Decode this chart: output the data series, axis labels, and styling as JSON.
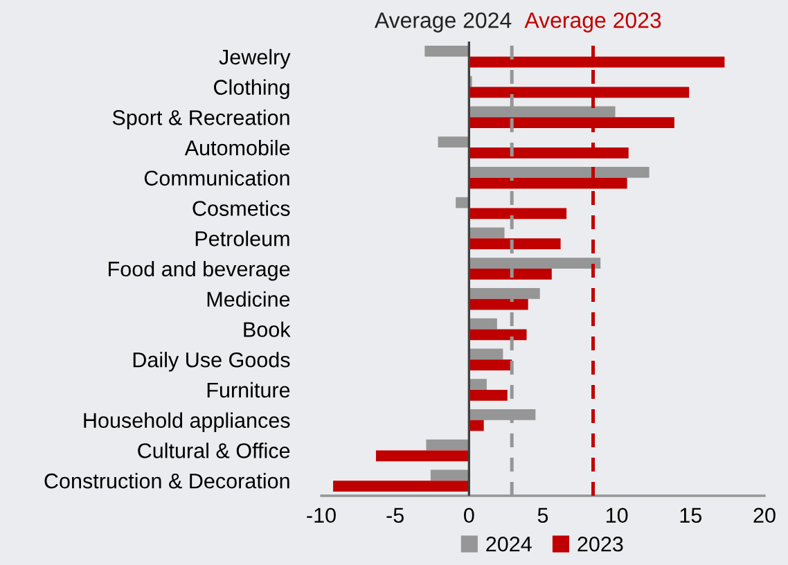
{
  "chart_data": {
    "type": "bar",
    "orientation": "horizontal",
    "categories": [
      "Jewelry",
      "Clothing",
      "Sport & Recreation",
      "Automobile",
      "Communication",
      "Cosmetics",
      "Petroleum",
      "Food and beverage",
      "Medicine",
      "Book",
      "Daily Use Goods",
      "Furniture",
      "Household appliances",
      "Cultural & Office",
      "Construction & Decoration"
    ],
    "series": [
      {
        "name": "2024",
        "color": "#969696",
        "values": [
          -3.0,
          0.2,
          9.9,
          -2.1,
          12.2,
          -0.9,
          2.4,
          8.9,
          4.8,
          1.9,
          2.3,
          1.2,
          4.5,
          -2.9,
          -2.6
        ]
      },
      {
        "name": "2023",
        "color": "#c00000",
        "values": [
          17.3,
          14.9,
          13.9,
          10.8,
          10.7,
          6.6,
          6.2,
          5.6,
          4.0,
          3.9,
          2.9,
          2.6,
          1.0,
          -6.3,
          -9.2
        ]
      }
    ],
    "xlim": [
      -10,
      20
    ],
    "xticks": [
      -10,
      -5,
      0,
      5,
      10,
      15,
      20
    ],
    "ref_lines": [
      {
        "axis": "x",
        "value": 0,
        "color": "#404040",
        "line_style": "solid"
      },
      {
        "axis": "x",
        "value": 2.9,
        "label": "Average 2024",
        "color": "#969696",
        "line_style": "dashed"
      },
      {
        "axis": "x",
        "value": 8.4,
        "label": "Average 2023",
        "color": "#c00000",
        "line_style": "dashed"
      }
    ],
    "legend": "bottom",
    "grid": false
  }
}
